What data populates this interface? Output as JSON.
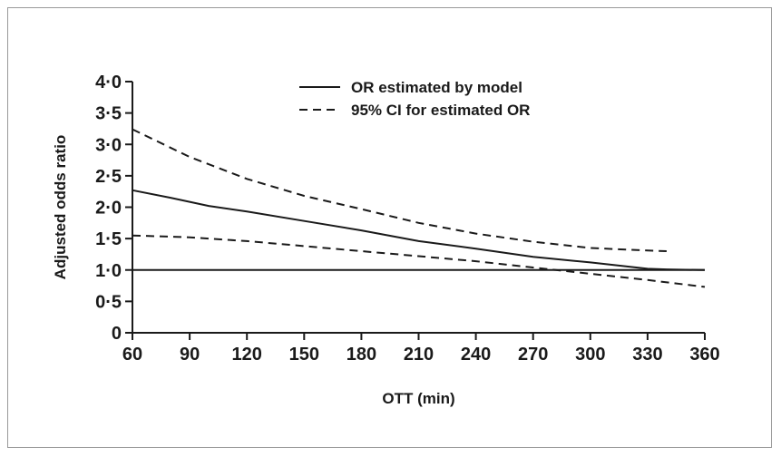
{
  "chart_data": {
    "type": "line",
    "title": "",
    "xlabel": "OTT (min)",
    "ylabel": "Adjusted odds ratio",
    "xlim": [
      60,
      360
    ],
    "ylim": [
      0,
      4.0
    ],
    "x_ticks": [
      60,
      90,
      120,
      150,
      180,
      210,
      240,
      270,
      300,
      330,
      360
    ],
    "x_tick_labels": [
      "60",
      "90",
      "120",
      "150",
      "180",
      "210",
      "240",
      "270",
      "300",
      "330",
      "360"
    ],
    "y_ticks": [
      0,
      0.5,
      1.0,
      1.5,
      2.0,
      2.5,
      3.0,
      3.5,
      4.0
    ],
    "y_tick_labels": [
      "0",
      "0·5",
      "1·0",
      "1·5",
      "2·0",
      "2·5",
      "3·0",
      "3·5",
      "4·0"
    ],
    "grid": false,
    "legend_position": "top-center",
    "series": [
      {
        "name": "OR estimated by model",
        "style": "solid",
        "color": "#1a1a1a",
        "x": [
          60,
          80,
          100,
          120,
          150,
          180,
          210,
          240,
          270,
          300,
          330,
          340,
          360
        ],
        "y": [
          2.27,
          2.15,
          2.02,
          1.93,
          1.78,
          1.63,
          1.46,
          1.34,
          1.21,
          1.12,
          1.02,
          1.01,
          1.0
        ]
      },
      {
        "name": "95% CI for estimated OR",
        "style": "dashed",
        "color": "#1a1a1a",
        "x": [
          60,
          90,
          120,
          150,
          180,
          210,
          240,
          270,
          300,
          330,
          340
        ],
        "y": [
          3.24,
          2.8,
          2.45,
          2.18,
          1.97,
          1.75,
          1.58,
          1.45,
          1.35,
          1.31,
          1.3
        ]
      },
      {
        "name": "",
        "style": "dashed",
        "color": "#1a1a1a",
        "x": [
          60,
          90,
          120,
          150,
          180,
          210,
          240,
          270,
          300,
          330,
          360
        ],
        "y": [
          1.55,
          1.52,
          1.46,
          1.38,
          1.3,
          1.22,
          1.14,
          1.04,
          0.94,
          0.84,
          0.73
        ]
      },
      {
        "name": "",
        "style": "solid",
        "color": "#1a1a1a",
        "x": [
          60,
          360
        ],
        "y": [
          1.0,
          1.0
        ]
      }
    ]
  }
}
